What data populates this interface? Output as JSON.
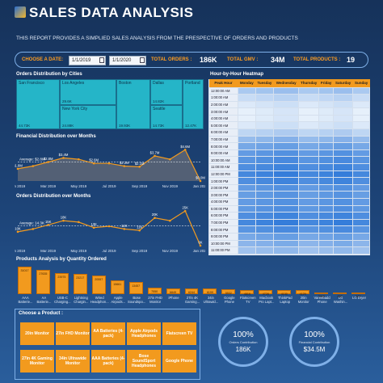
{
  "header": {
    "title": "SALES DATA ANALYSIS",
    "subtitle": "THIS REPORT PROVIDES A SIMPLIED SALES ANALYSIS FROM THE PRESPECTIVE OF ORDERS AND PRODUCTS"
  },
  "filters": {
    "date_label": "CHOOSE A DATE:",
    "date_from": "1/1/2019",
    "date_to": "1/1/2020",
    "orders_label": "TOTAL ORDERS :",
    "orders_value": "186K",
    "gmv_label": "TOTAL GMV :",
    "gmv_value": "34M",
    "products_label": "TOTAL PRODUCTS :",
    "products_value": "19"
  },
  "sections": {
    "cities": "Orders Distribution by Cities",
    "financial": "Financial Distribution over Months",
    "orders_months": "Orders Distribution over Months",
    "heatmap": "Hour-by-Hour Heatmap",
    "products": "Products Analysis by Quantity Ordered",
    "choose": "Choose a Product :"
  },
  "treemap": [
    {
      "city": "San Francisco",
      "value": "44.73K"
    },
    {
      "city": "Los Angeles",
      "value": "29.6K"
    },
    {
      "city": "New York City",
      "value": "24.88K"
    },
    {
      "city": "Boston",
      "value": "19.93K"
    },
    {
      "city": "Dallas",
      "value": "14.82K"
    },
    {
      "city": "Seattle",
      "value": "14.73K"
    },
    {
      "city": "Portland",
      "value": "12.47K"
    }
  ],
  "heatmap": {
    "headers": [
      "Peak Hour",
      "Monday",
      "Tuesday",
      "Wednesday",
      "Thursday",
      "Friday",
      "Saturday",
      "Sunday"
    ],
    "hours": [
      "12:00:00 AM",
      "1:00:00 AM",
      "2:00:00 AM",
      "3:00:00 AM",
      "4:00:00 AM",
      "5:00:00 AM",
      "6:00:00 AM",
      "7:00:00 AM",
      "8:00:00 AM",
      "9:00:00 AM",
      "10:00:00 AM",
      "11:00:00 AM",
      "12:00:00 PM",
      "1:00:00 PM",
      "2:00:00 PM",
      "3:00:00 PM",
      "4:00:00 PM",
      "5:00:00 PM",
      "6:00:00 PM",
      "7:00:00 PM",
      "8:00:00 PM",
      "9:00:00 PM",
      "10:00:00 PM",
      "11:00:00 PM"
    ],
    "intensity": [
      0.35,
      0.2,
      0.1,
      0.05,
      0.05,
      0.1,
      0.25,
      0.45,
      0.6,
      0.7,
      0.75,
      0.8,
      0.85,
      0.8,
      0.7,
      0.68,
      0.7,
      0.72,
      0.8,
      0.85,
      0.75,
      0.6,
      0.5,
      0.4
    ],
    "low_color": "#e8f1fb",
    "high_color": "#1f6fd6"
  },
  "chart_data": [
    {
      "type": "area",
      "title": "Financial Distribution over Months",
      "x": [
        "Jan 2019",
        "Feb 2019",
        "Mar 2019",
        "Apr 2019",
        "May 2019",
        "Jun 2019",
        "Jul 2019",
        "Aug 2019",
        "Sep 2019",
        "Oct 2019",
        "Nov 2019",
        "Dec 2019",
        "Jan 2020"
      ],
      "x_ticks": [
        "Jan 2019",
        "Mar 2019",
        "May 2019",
        "Jul 2019",
        "Sep 2019",
        "Nov 2019",
        "Jan 2020"
      ],
      "values": [
        1.8,
        2.2,
        2.8,
        3.4,
        3.2,
        2.6,
        2.6,
        2.2,
        2.1,
        3.7,
        3.2,
        4.6,
        0.0
      ],
      "data_labels": [
        "$1.8M",
        "",
        "$2.8M",
        "$3.4M",
        "",
        "$2.6M",
        "",
        "$2.2M",
        "$2.1M",
        "$3.7M",
        "",
        "$4.6M",
        "$0.0M"
      ],
      "average": 2.8,
      "average_label": "Average: $2.8M",
      "ylim": [
        0,
        5
      ]
    },
    {
      "type": "line",
      "title": "Orders Distribution over Months",
      "x": [
        "Jan 2019",
        "Feb 2019",
        "Mar 2019",
        "Apr 2019",
        "May 2019",
        "Jun 2019",
        "Jul 2019",
        "Aug 2019",
        "Sep 2019",
        "Oct 2019",
        "Nov 2019",
        "Dec 2019",
        "Jan 2020"
      ],
      "x_ticks": [
        "Jan 2019",
        "Mar 2019",
        "May 2019",
        "Jul 2019",
        "Sep 2019",
        "Nov 2019",
        "Jan 2020"
      ],
      "values": [
        10,
        12,
        15,
        18,
        17,
        13,
        14,
        12,
        11,
        20,
        18,
        25,
        0
      ],
      "data_labels": [
        "10K",
        "",
        "15K",
        "18K",
        "",
        "13K",
        "",
        "12K",
        "11K",
        "20K",
        "",
        "25K",
        "0K"
      ],
      "average": 14.3,
      "average_label": "Average: 14.3K",
      "ylim": [
        0,
        28
      ]
    },
    {
      "type": "bar",
      "title": "Products Analysis by Quantity Ordered",
      "categories": [
        "AAA Batterie...",
        "AA Batterie...",
        "USB-C Charging...",
        "Lightning Chargin...",
        "Wired Headphon...",
        "Apple Airpods...",
        "Bose Soundspo...",
        "27in FHD Monitor",
        "iPhone",
        "27in 4K Gaming...",
        "34in Ultrawid...",
        "Google Phone",
        "Flatscreen TV",
        "Macbook Pro Lapt...",
        "ThinkPad Laptop",
        "20in Monitor",
        "Vareebadd Phone",
        "LG Washin...",
        "LG Dryer"
      ],
      "values": [
        31017,
        27635,
        23975,
        23217,
        20557,
        15661,
        13457,
        7550,
        6849,
        6244,
        6199,
        5532,
        4819,
        4728,
        4130,
        4129,
        2068,
        666,
        646
      ],
      "data_labels": [
        "31017",
        "27635",
        "23975",
        "23217",
        "20557",
        "15661",
        "13457",
        "7550",
        "6849",
        "6244",
        "6199",
        "5532",
        "4819",
        "4728",
        "4130",
        "4129",
        "2068",
        "666",
        "646"
      ]
    }
  ],
  "products": [
    "20in Monitor",
    "27in FHD Monitor",
    "AA Batteries (4-pack)",
    "Apple Airpods Headphones",
    "Flatscreen TV",
    "27in 4K Gaming Monitor",
    "34in Ultrawide Monitor",
    "AAA Batteries (4-pack)",
    "Bose SoundSport Headphones",
    "Google Phone"
  ],
  "kpis": [
    {
      "pct": "100%",
      "label": "Orders Contribution",
      "value": "186K"
    },
    {
      "pct": "100%",
      "label": "Financial Contribution",
      "value": "$34.5M"
    }
  ],
  "colors": {
    "accent": "#f29a1e",
    "teal": "#25b5c8",
    "bg": "#1d4478"
  }
}
